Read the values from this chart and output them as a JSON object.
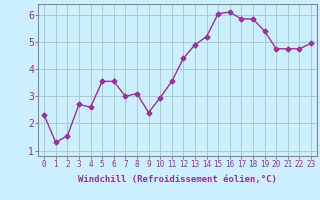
{
  "x": [
    0,
    1,
    2,
    3,
    4,
    5,
    6,
    7,
    8,
    9,
    10,
    11,
    12,
    13,
    14,
    15,
    16,
    17,
    18,
    19,
    20,
    21,
    22,
    23
  ],
  "y": [
    2.3,
    1.3,
    1.55,
    2.7,
    2.6,
    3.55,
    3.55,
    3.0,
    3.1,
    2.4,
    2.95,
    3.55,
    4.4,
    4.9,
    5.2,
    6.05,
    6.1,
    5.85,
    5.85,
    5.4,
    4.75,
    4.75,
    4.75,
    4.95
  ],
  "line_color": "#993399",
  "marker": "D",
  "marker_size": 2.5,
  "linewidth": 1.0,
  "background_color": "#cceeff",
  "grid_color": "#aacccc",
  "xlabel": "Windchill (Refroidissement éolien,°C)",
  "xlabel_fontsize": 6.5,
  "ylabel_ticks": [
    1,
    2,
    3,
    4,
    5,
    6
  ],
  "xtick_labels": [
    "0",
    "1",
    "2",
    "3",
    "4",
    "5",
    "6",
    "7",
    "8",
    "9",
    "10",
    "11",
    "12",
    "13",
    "14",
    "15",
    "16",
    "17",
    "18",
    "19",
    "20",
    "21",
    "22",
    "23"
  ],
  "xlim": [
    -0.5,
    23.5
  ],
  "ylim": [
    0.8,
    6.4
  ],
  "tick_color": "#993399",
  "tick_fontsize": 5.5,
  "ytick_fontsize": 7,
  "spine_color": "#888888"
}
